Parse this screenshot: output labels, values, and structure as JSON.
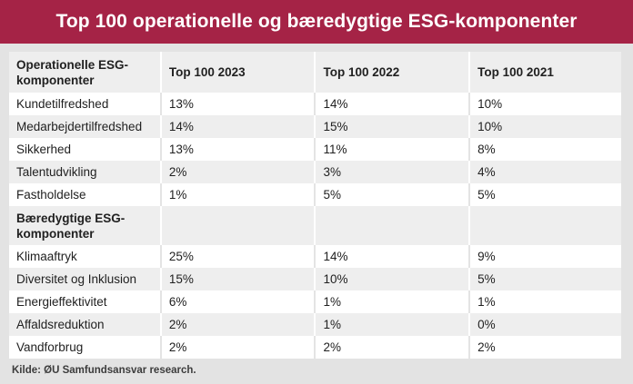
{
  "banner": {
    "title": "Top 100 operationelle og bæredygtige ESG-komponenter"
  },
  "chart_data": {
    "type": "table",
    "title": "Top 100 operationelle og bæredygtige ESG-komponenter",
    "columns": [
      "Operationelle ESG-komponenter",
      "Top 100 2023",
      "Top 100 2022",
      "Top 100 2021"
    ],
    "rows": [
      {
        "type": "data",
        "label": "Kundetilfredshed",
        "values": [
          "13%",
          "14%",
          "10%"
        ]
      },
      {
        "type": "data",
        "label": "Medarbejdertilfredshed",
        "values": [
          "14%",
          "15%",
          "10%"
        ]
      },
      {
        "type": "data",
        "label": "Sikkerhed",
        "values": [
          "13%",
          "11%",
          "8%"
        ]
      },
      {
        "type": "data",
        "label": "Talentudvikling",
        "values": [
          "2%",
          "3%",
          "4%"
        ]
      },
      {
        "type": "data",
        "label": "Fastholdelse",
        "values": [
          "1%",
          "5%",
          "5%"
        ]
      },
      {
        "type": "section",
        "label": "Bæredygtige ESG-komponenter",
        "values": [
          "",
          "",
          ""
        ]
      },
      {
        "type": "data",
        "label": "Klimaaftryk",
        "values": [
          "25%",
          "14%",
          "9%"
        ]
      },
      {
        "type": "data",
        "label": "Diversitet og Inklusion",
        "values": [
          "15%",
          "10%",
          "5%"
        ]
      },
      {
        "type": "data",
        "label": "Energieffektivitet",
        "values": [
          "6%",
          "1%",
          "1%"
        ]
      },
      {
        "type": "data",
        "label": "Affaldsreduktion",
        "values": [
          "2%",
          "1%",
          "0%"
        ]
      },
      {
        "type": "data",
        "label": "Vandforbrug",
        "values": [
          "2%",
          "2%",
          "2%"
        ]
      }
    ],
    "source": "Kilde: ØU Samfundsansvar research."
  },
  "colors": {
    "banner_bg": "#a52346",
    "banner_text": "#ffffff",
    "page_bg": "#e3e3e3",
    "stripe_bg": "#eeeeee",
    "row_bg": "#ffffff",
    "cell_text": "#212121",
    "source_text": "#3c3c3c"
  }
}
